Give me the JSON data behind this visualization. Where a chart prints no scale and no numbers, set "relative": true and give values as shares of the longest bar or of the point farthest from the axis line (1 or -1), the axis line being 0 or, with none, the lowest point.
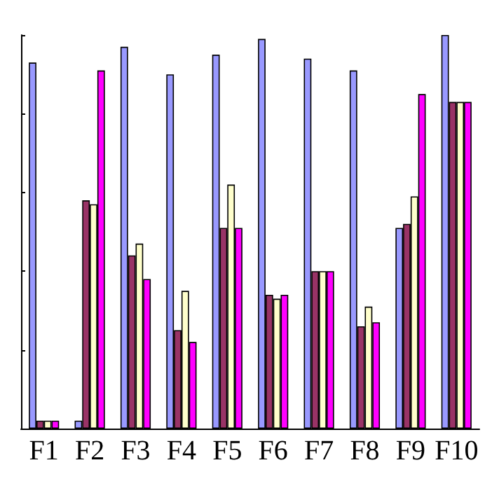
{
  "chart_data": {
    "type": "bar",
    "relative": true,
    "grid": false,
    "categories": [
      "F1",
      "F2",
      "F3",
      "F4",
      "F5",
      "F6",
      "F7",
      "F8",
      "F9",
      "F10"
    ],
    "series": [
      {
        "color": "#9999ff",
        "values": [
          0.93,
          0.02,
          0.97,
          0.9,
          0.95,
          0.99,
          0.94,
          0.91,
          0.51,
          1
        ]
      },
      {
        "color": "#993366",
        "values": [
          0.02,
          0.58,
          0.44,
          0.25,
          0.51,
          0.34,
          0.4,
          0.26,
          0.52,
          0.83
        ]
      },
      {
        "color": "#ffffcc",
        "values": [
          0.02,
          0.57,
          0.47,
          0.35,
          0.62,
          0.33,
          0.4,
          0.31,
          0.59,
          0.83
        ]
      },
      {
        "color": "#ff00ff",
        "values": [
          0.02,
          0.91,
          0.38,
          0.22,
          0.51,
          0.34,
          0.4,
          0.27,
          0.85,
          0.83
        ]
      }
    ]
  }
}
